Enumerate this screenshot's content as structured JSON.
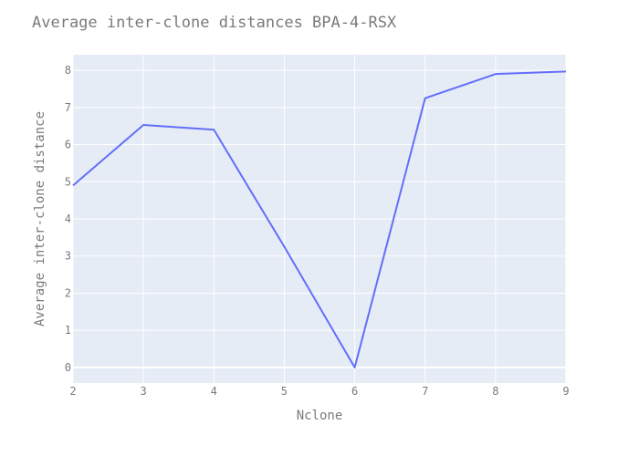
{
  "chart_data": {
    "type": "line",
    "title": "Average inter-clone distances BPA-4-RSX",
    "xlabel": "Nclone",
    "ylabel": "Average inter-clone distance",
    "x": [
      2,
      3,
      4,
      5,
      6,
      7,
      8,
      9
    ],
    "series": [
      {
        "name": "Average inter-clone distance",
        "values": [
          4.9,
          6.53,
          6.4,
          3.25,
          0.0,
          7.25,
          7.9,
          7.97
        ]
      }
    ],
    "xlim": [
      2,
      9
    ],
    "ylim": [
      -0.42,
      8.42
    ],
    "xticks": [
      2,
      3,
      4,
      5,
      6,
      7,
      8,
      9
    ],
    "yticks": [
      0,
      1,
      2,
      3,
      4,
      5,
      6,
      7,
      8
    ],
    "grid": true,
    "colors": {
      "line": "#636efa",
      "plot_bg": "#e5ecf6",
      "paper_bg": "#ffffff",
      "grid": "#ffffff"
    }
  }
}
